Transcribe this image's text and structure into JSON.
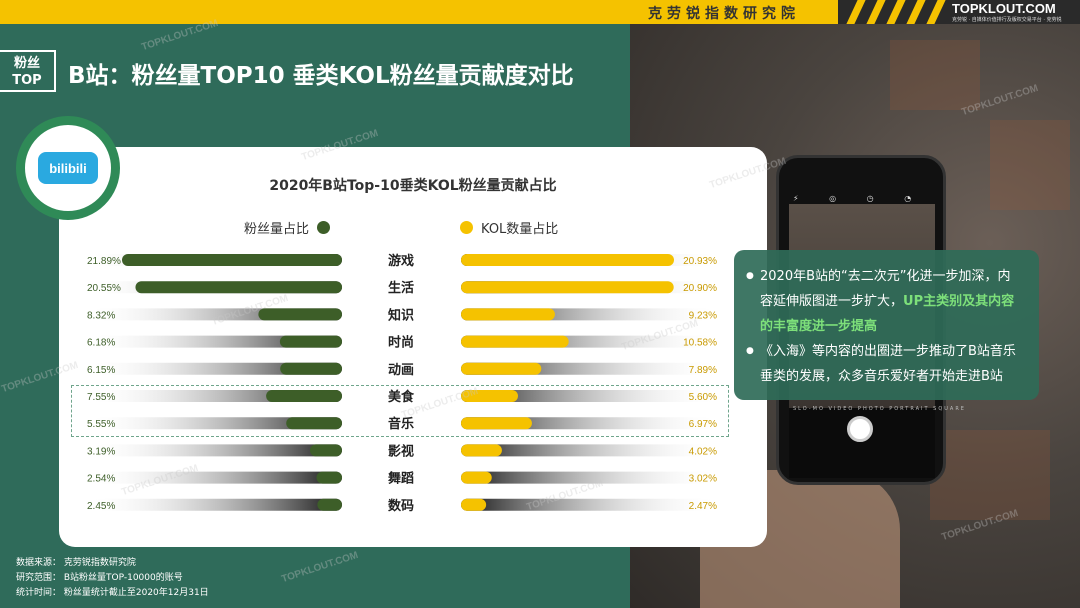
{
  "header": {
    "institute": "克劳锐指数研究院",
    "logo": "TOPKLOUT.COM",
    "logo_sub": "克劳锐 · 自媒体价值排行及版权交易平台 · 克劳锐",
    "tag_line1": "粉丝",
    "tag_line2": "TOP",
    "title": "B站：粉丝量TOP10 垂类KOL粉丝量贡献度对比"
  },
  "brand_logo": "bilibili",
  "chart_data": {
    "type": "bar",
    "title": "2020年B站Top-10垂类KOL粉丝量贡献占比",
    "categories": [
      "游戏",
      "生活",
      "知识",
      "时尚",
      "动画",
      "美食",
      "音乐",
      "影视",
      "舞蹈",
      "数码"
    ],
    "series": [
      {
        "name": "粉丝量占比",
        "color": "#3d5e28",
        "values": [
          21.89,
          20.55,
          8.32,
          6.18,
          6.15,
          7.55,
          5.55,
          3.19,
          2.54,
          2.45
        ],
        "labels": [
          "21.89%",
          "20.55%",
          "8.32%",
          "6.18%",
          "6.15%",
          "7.55%",
          "5.55%",
          "3.19%",
          "2.54%",
          "2.45%"
        ]
      },
      {
        "name": "KOL数量占比",
        "color": "#f5c200",
        "values": [
          20.93,
          20.9,
          9.23,
          10.58,
          7.89,
          5.6,
          6.97,
          4.02,
          3.02,
          2.47
        ],
        "labels": [
          "20.93%",
          "20.90%",
          "9.23%",
          "10.58%",
          "7.89%",
          "5.60%",
          "6.97%",
          "4.02%",
          "3.02%",
          "2.47%"
        ]
      }
    ],
    "highlight": [
      "美食",
      "音乐"
    ]
  },
  "callout": {
    "p1_a": "2020年B站的“去二次元”化进一步加深，内容延伸版图进一步扩大，",
    "p1_hl": "UP主类别及其内容的丰富度进一步提高",
    "p2": "《入海》等内容的出圈进一步推动了B站音乐垂类的发展，众多音乐爱好者开始走进B站"
  },
  "phone": {
    "modes": "SLO-MO  VIDEO  PHOTO  PORTRAIT  SQUARE",
    "icons": "⚡ ◎ ◷ ◔"
  },
  "watermark": "TOPKLOUT.COM",
  "footer": {
    "source": "数据来源：  克劳锐指数研究院",
    "scope": "研究范围：  B站粉丝量TOP-10000的账号",
    "time": "统计时间：  粉丝量统计截止至2020年12月31日"
  }
}
